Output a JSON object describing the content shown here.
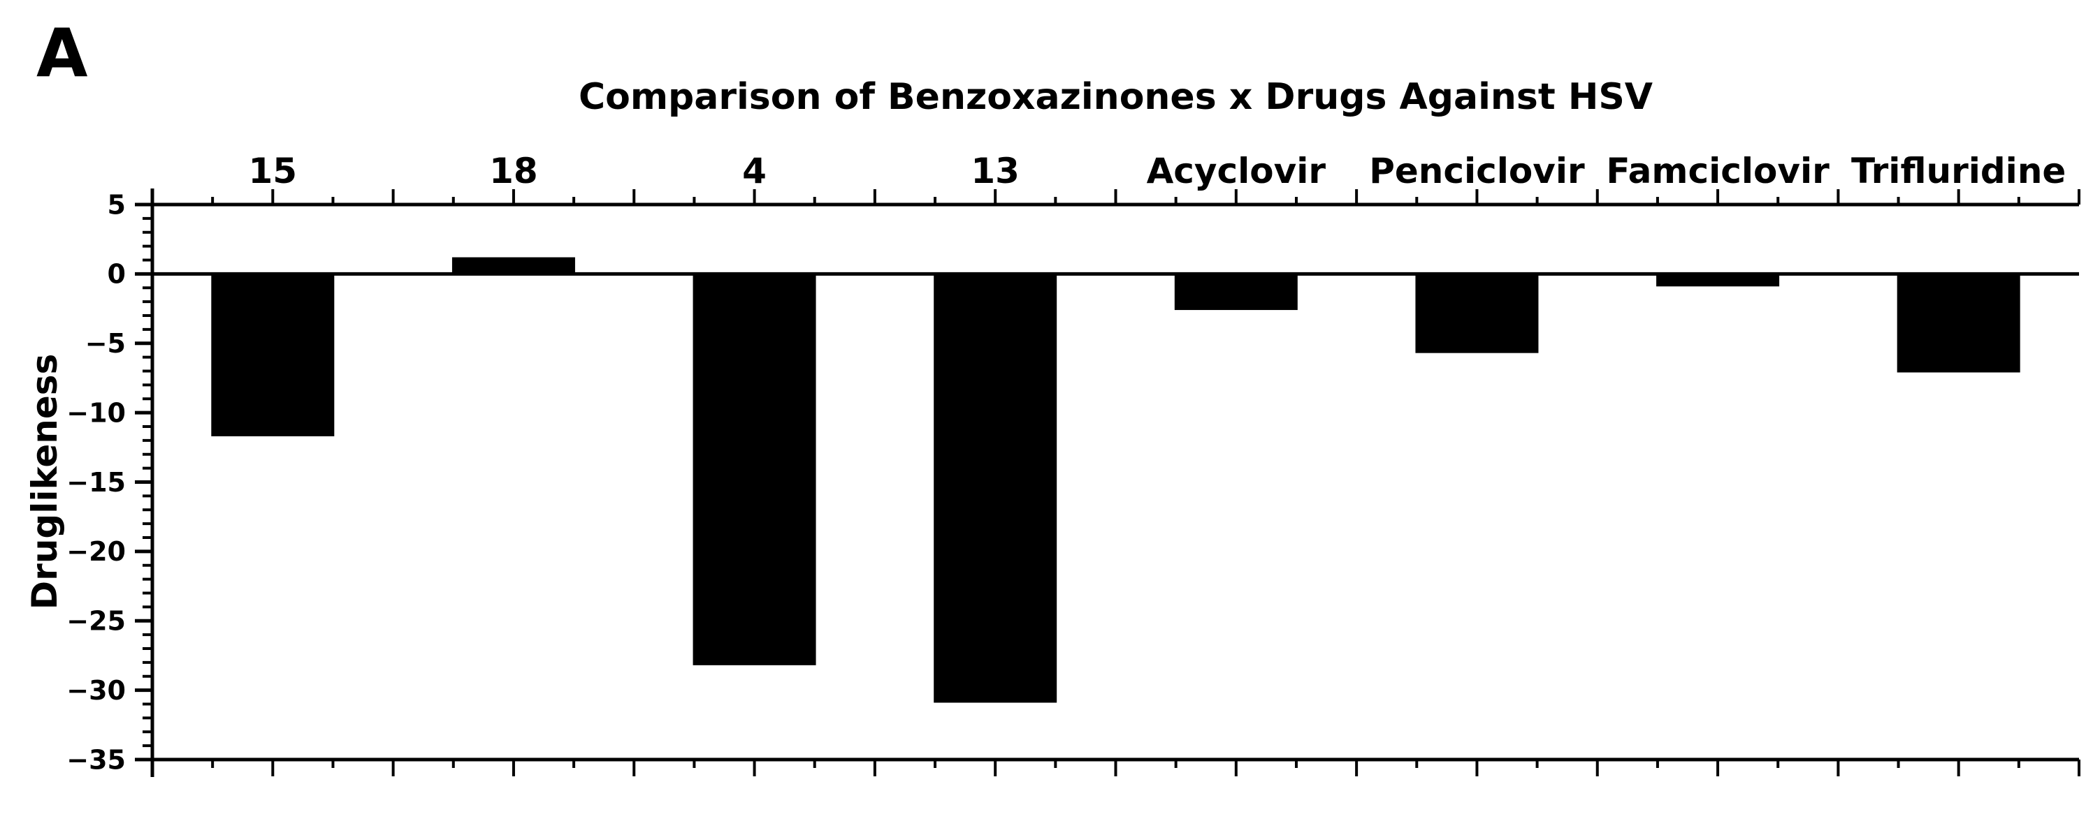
{
  "panel_label": "A",
  "chart_data": {
    "type": "bar",
    "title": "Comparison of Benzoxazinones x Drugs Against HSV",
    "categories": [
      "15",
      "18",
      "4",
      "13",
      "Acyclovir",
      "Penciclovir",
      "Famciclovir",
      "Trifluridine"
    ],
    "values": [
      -11.7,
      1.2,
      -28.2,
      -30.9,
      -2.6,
      -5.7,
      -0.9,
      -7.1
    ],
    "xlabel": "",
    "ylabel": "Druglikeness",
    "ylim": [
      -35,
      5
    ],
    "y_ticks": [
      5,
      0,
      -5,
      -10,
      -15,
      -20,
      -25,
      -30,
      -35
    ],
    "y_minor_step": 1,
    "baseline_value": 0,
    "category_axis_position": "top",
    "bar_color": "#000000",
    "axis_color": "#000000",
    "background_color": "#ffffff",
    "grid": false,
    "legend": false
  }
}
